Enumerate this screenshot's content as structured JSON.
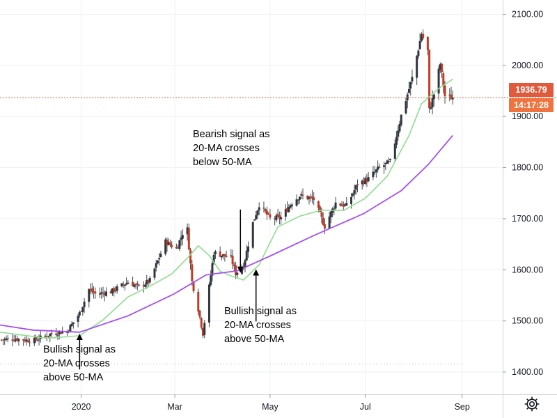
{
  "chart_data": {
    "type": "candlestick",
    "title": "",
    "instrument_note": "",
    "y_axis": {
      "ticks": [
        "2100.00",
        "2000.00",
        "1900.00",
        "1800.00",
        "1700.00",
        "1600.00",
        "1500.00",
        "1400.00"
      ],
      "tick_values": [
        2100,
        2000,
        1900,
        1800,
        1700,
        1600,
        1500,
        1400
      ],
      "range": [
        1310,
        2128
      ],
      "grid": true
    },
    "x_axis": {
      "ticks": [
        "2020",
        "Mar",
        "May",
        "Jul",
        "Sep"
      ],
      "tick_dates": [
        "2020-01-01",
        "2020-03-01",
        "2020-05-01",
        "2020-07-01",
        "2020-09-01"
      ],
      "range": [
        "2019-11-10",
        "2020-09-27"
      ]
    },
    "last_price": "1936.79",
    "last_price_value": 1936.79,
    "countdown": "14:17:28",
    "dotted_level": 1416,
    "colors": {
      "up_candle": "#30363f",
      "down_candle": "#c23b22",
      "ma20": "#8fdc8f",
      "ma50": "#a64ff0",
      "price_line": "#e05a3c",
      "price_tag": "#e05a3c",
      "timer_tag": "#f0743f",
      "grid": "#eef0f3"
    },
    "close_path": [
      [
        "2019-11-10",
        1463
      ],
      [
        "2019-11-20",
        1465
      ],
      [
        "2019-12-01",
        1461
      ],
      [
        "2019-12-12",
        1474
      ],
      [
        "2019-12-23",
        1480
      ],
      [
        "2019-12-31",
        1515
      ],
      [
        "2020-01-06",
        1562
      ],
      [
        "2020-01-10",
        1553
      ],
      [
        "2020-01-20",
        1557
      ],
      [
        "2020-01-31",
        1576
      ],
      [
        "2020-02-07",
        1566
      ],
      [
        "2020-02-14",
        1579
      ],
      [
        "2020-02-24",
        1655
      ],
      [
        "2020-03-02",
        1641
      ],
      [
        "2020-03-06",
        1672
      ],
      [
        "2020-03-09",
        1679
      ],
      [
        "2020-03-12",
        1577
      ],
      [
        "2020-03-16",
        1523
      ],
      [
        "2020-03-19",
        1475
      ],
      [
        "2020-03-23",
        1567
      ],
      [
        "2020-03-26",
        1634
      ],
      [
        "2020-04-06",
        1623
      ],
      [
        "2020-04-09",
        1593
      ],
      [
        "2020-04-14",
        1608
      ],
      [
        "2020-04-20",
        1692
      ],
      [
        "2020-04-24",
        1728
      ],
      [
        "2020-05-01",
        1700
      ],
      [
        "2020-05-08",
        1702
      ],
      [
        "2020-05-15",
        1732
      ],
      [
        "2020-05-20",
        1745
      ],
      [
        "2020-05-29",
        1738
      ],
      [
        "2020-06-05",
        1685
      ],
      [
        "2020-06-12",
        1731
      ],
      [
        "2020-06-19",
        1725
      ],
      [
        "2020-06-26",
        1768
      ],
      [
        "2020-07-03",
        1778
      ],
      [
        "2020-07-10",
        1800
      ],
      [
        "2020-07-17",
        1811
      ],
      [
        "2020-07-24",
        1902
      ],
      [
        "2020-07-31",
        1975
      ],
      [
        "2020-08-06",
        2062
      ],
      [
        "2020-08-10",
        2028
      ],
      [
        "2020-08-11",
        1912
      ],
      [
        "2020-08-14",
        1944
      ],
      [
        "2020-08-18",
        2003
      ],
      [
        "2020-08-21",
        1940
      ],
      [
        "2020-08-26",
        1936.79
      ]
    ],
    "ma20": [
      [
        "2019-11-10",
        1478
      ],
      [
        "2019-12-10",
        1466
      ],
      [
        "2019-12-31",
        1471
      ],
      [
        "2020-01-15",
        1502
      ],
      [
        "2020-01-31",
        1547
      ],
      [
        "2020-02-14",
        1568
      ],
      [
        "2020-02-28",
        1592
      ],
      [
        "2020-03-09",
        1623
      ],
      [
        "2020-03-16",
        1647
      ],
      [
        "2020-03-23",
        1628
      ],
      [
        "2020-03-30",
        1597
      ],
      [
        "2020-04-06",
        1588
      ],
      [
        "2020-04-14",
        1580
      ],
      [
        "2020-04-24",
        1610
      ],
      [
        "2020-05-06",
        1684
      ],
      [
        "2020-05-20",
        1705
      ],
      [
        "2020-06-03",
        1717
      ],
      [
        "2020-06-17",
        1716
      ],
      [
        "2020-07-01",
        1740
      ],
      [
        "2020-07-15",
        1783
      ],
      [
        "2020-07-29",
        1863
      ],
      [
        "2020-08-06",
        1925
      ],
      [
        "2020-08-17",
        1955
      ],
      [
        "2020-08-26",
        1973
      ]
    ],
    "ma50": [
      [
        "2019-11-10",
        1492
      ],
      [
        "2019-12-01",
        1482
      ],
      [
        "2019-12-31",
        1478
      ],
      [
        "2020-01-31",
        1510
      ],
      [
        "2020-02-29",
        1552
      ],
      [
        "2020-03-21",
        1590
      ],
      [
        "2020-04-10",
        1598
      ],
      [
        "2020-05-01",
        1627
      ],
      [
        "2020-05-29",
        1667
      ],
      [
        "2020-06-30",
        1710
      ],
      [
        "2020-07-24",
        1755
      ],
      [
        "2020-08-10",
        1805
      ],
      [
        "2020-08-26",
        1863
      ]
    ],
    "annotations": [
      {
        "id": "bullish-1",
        "lines": [
          "Bullish signal as",
          "20-MA crosses",
          "above 50-MA"
        ],
        "arrow": {
          "date": "2019-12-31",
          "tip": 1475,
          "tail": 1405,
          "direction": "up"
        }
      },
      {
        "id": "bearish",
        "lines": [
          "Bearish signal as",
          "20-MA crosses",
          "below 50-MA"
        ],
        "arrow": {
          "date": "2020-04-12",
          "tip": 1594,
          "tail": 1718,
          "direction": "down"
        }
      },
      {
        "id": "bullish-2",
        "lines": [
          "Bullish signal as",
          "20-MA crosses",
          "above 50-MA"
        ],
        "arrow": {
          "date": "2020-04-22",
          "tip": 1601,
          "tail": 1499,
          "direction": "up"
        }
      }
    ],
    "grid": true,
    "legend": "none"
  },
  "ui": {
    "settings_icon": "gear-icon"
  }
}
